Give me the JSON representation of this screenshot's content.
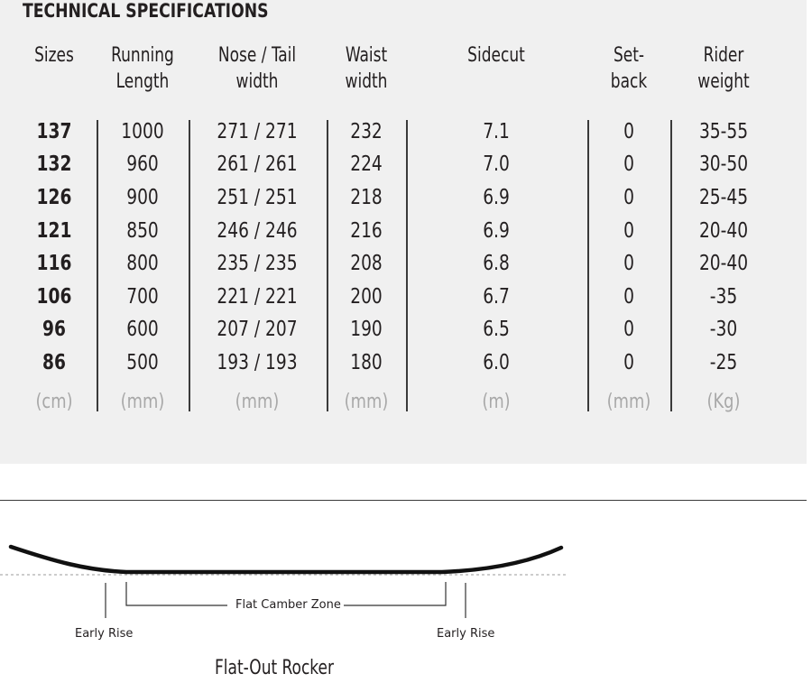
{
  "title": "TECHNICAL SPECIFICATIONS",
  "columns": [
    {
      "h1": "Sizes",
      "h2": "",
      "unit": "(cm)",
      "bold": true,
      "values": [
        "137",
        "132",
        "126",
        "121",
        "116",
        "106",
        "96",
        "86"
      ]
    },
    {
      "h1": "Running",
      "h2": "Length",
      "unit": "(mm)",
      "bold": false,
      "values": [
        "1000",
        "960",
        "900",
        "850",
        "800",
        "700",
        "600",
        "500"
      ]
    },
    {
      "h1": "Nose / Tail",
      "h2": "width",
      "unit": "(mm)",
      "bold": false,
      "values": [
        "271 / 271",
        "261 / 261",
        "251 / 251",
        "246 / 246",
        "235 / 235",
        "221 / 221",
        "207 / 207",
        "193 / 193"
      ]
    },
    {
      "h1": "Waist",
      "h2": "width",
      "unit": "(mm)",
      "bold": false,
      "values": [
        "232",
        "224",
        "218",
        "216",
        "208",
        "200",
        "190",
        "180"
      ]
    },
    {
      "h1": "Sidecut",
      "h2": "",
      "unit": "(m)",
      "bold": false,
      "values": [
        "7.1",
        "7.0",
        "6.9",
        "6.9",
        "6.8",
        "6.7",
        "6.5",
        "6.0"
      ]
    },
    {
      "h1": "Set-",
      "h2": "back",
      "unit": "(mm)",
      "bold": false,
      "values": [
        "0",
        "0",
        "0",
        "0",
        "0",
        "0",
        "0",
        "0"
      ]
    },
    {
      "h1": "Rider",
      "h2": "weight",
      "unit": "(Kg)",
      "bold": false,
      "values": [
        "35-55",
        "30-50",
        "25-45",
        "20-40",
        "20-40",
        "-35",
        "-30",
        "-25"
      ]
    }
  ],
  "diagram": {
    "flat_zone_label": "Flat Camber Zone",
    "early_rise_left": "Early Rise",
    "early_rise_right": "Early Rise",
    "profile_name": "Flat-Out Rocker"
  },
  "colors": {
    "panel_bg": "#f0f0f0",
    "text": "#231f20",
    "unit_text": "#a8a8a8"
  }
}
